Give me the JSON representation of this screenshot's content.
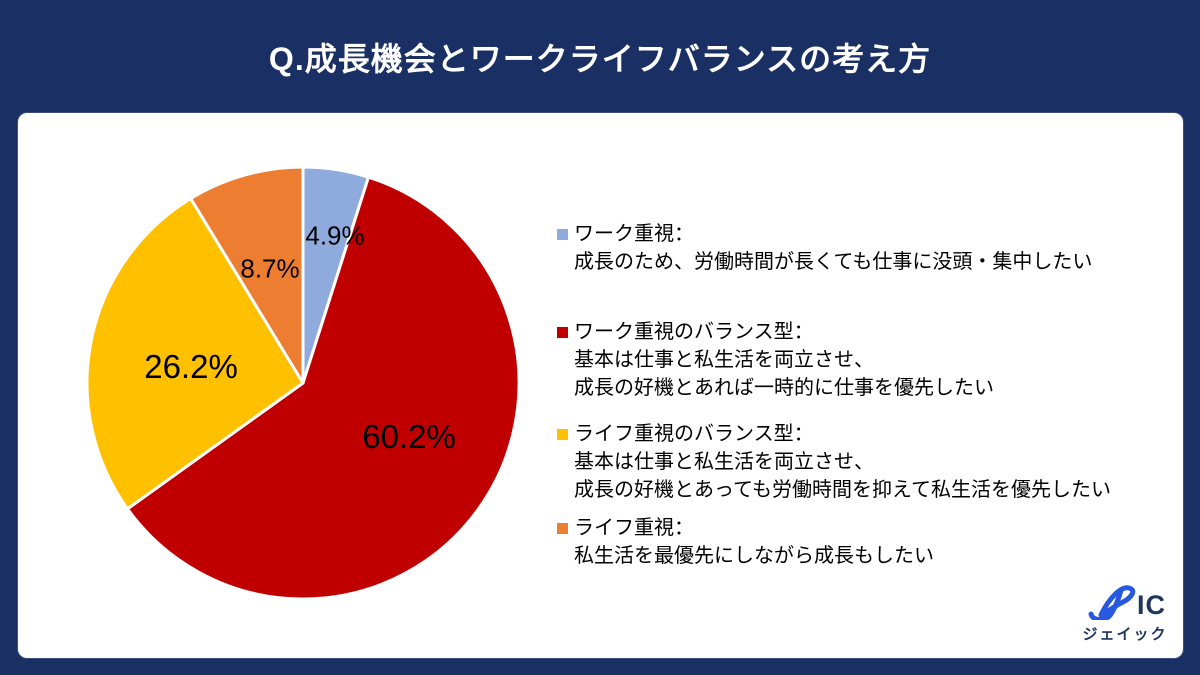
{
  "page": {
    "title": "Q.成長機会とワークライフバランスの考え方"
  },
  "colors": {
    "background": "#1A2F63",
    "card": "#FFFFFF",
    "logo_blue": "#2857E0",
    "logo_navy": "#1E3560"
  },
  "chart_data": {
    "type": "pie",
    "title": "Q.成長機会とワークライフバランスの考え方",
    "start_angle": "top-clockwise",
    "legend_position": "right",
    "slices": [
      {
        "label": "ワーク重視",
        "value": 4.9,
        "display": "4.9%",
        "color": "#8FAADC"
      },
      {
        "label": "ワーク重視のバランス型",
        "value": 60.2,
        "display": "60.2%",
        "color": "#C00000"
      },
      {
        "label": "ライフ重視のバランス型",
        "value": 26.2,
        "display": "26.2%",
        "color": "#FFC000"
      },
      {
        "label": "ライフ重視",
        "value": 8.7,
        "display": "8.7%",
        "color": "#ED7D31"
      }
    ]
  },
  "legend": {
    "items": [
      {
        "color": "#8FAADC",
        "title": "ワーク重視：",
        "desc1": "成長のため、労働時間が長くても仕事に没頭・集中したい"
      },
      {
        "color": "#C00000",
        "title": "ワーク重視のバランス型：",
        "desc1": "基本は仕事と私生活を両立させ、",
        "desc2": "成長の好機とあれば一時的に仕事を優先したい"
      },
      {
        "color": "#FFC000",
        "title": "ライフ重視のバランス型：",
        "desc1": "基本は仕事と私生活を両立させ、",
        "desc2": "成長の好機とあっても労働時間を抑えて私生活を優先したい"
      },
      {
        "color": "#ED7D31",
        "title": "ライフ重視：",
        "desc1": "私生活を最優先にしながら成長もしたい"
      }
    ]
  },
  "logo": {
    "wordmark": "JAIC",
    "ic_text": "IC",
    "katakana": "ジェイック"
  }
}
